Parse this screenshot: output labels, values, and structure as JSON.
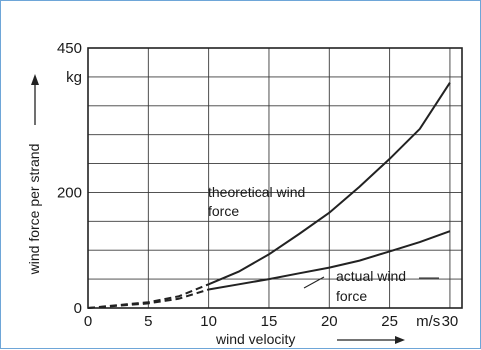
{
  "chart_data": {
    "type": "line",
    "xlabel": "wind velocity",
    "ylabel": "wind force per strand",
    "x_unit": "m/s",
    "y_unit": "kg",
    "xlim": [
      0,
      31
    ],
    "ylim": [
      0,
      450
    ],
    "x_ticks": [
      0,
      5,
      10,
      15,
      20,
      25,
      30
    ],
    "y_ticks": [
      0,
      200,
      450
    ],
    "grid": true,
    "series": [
      {
        "name": "theoretical wind force",
        "dashed_below_x": 10,
        "points": [
          {
            "x": 0,
            "y": 0
          },
          {
            "x": 5,
            "y": 10
          },
          {
            "x": 7.5,
            "y": 20
          },
          {
            "x": 10,
            "y": 41
          },
          {
            "x": 12.5,
            "y": 63
          },
          {
            "x": 15,
            "y": 93
          },
          {
            "x": 17.5,
            "y": 128
          },
          {
            "x": 20,
            "y": 165
          },
          {
            "x": 22.5,
            "y": 210
          },
          {
            "x": 25,
            "y": 258
          },
          {
            "x": 27.5,
            "y": 310
          },
          {
            "x": 30,
            "y": 390
          }
        ]
      },
      {
        "name": "actual wind force",
        "dashed_below_x": 10,
        "points": [
          {
            "x": 0,
            "y": 0
          },
          {
            "x": 5,
            "y": 8
          },
          {
            "x": 7.5,
            "y": 16
          },
          {
            "x": 10,
            "y": 32
          },
          {
            "x": 12.5,
            "y": 41
          },
          {
            "x": 15,
            "y": 50
          },
          {
            "x": 17.5,
            "y": 60
          },
          {
            "x": 20,
            "y": 70
          },
          {
            "x": 22.5,
            "y": 82
          },
          {
            "x": 25,
            "y": 98
          },
          {
            "x": 27.5,
            "y": 114
          },
          {
            "x": 30,
            "y": 133
          }
        ]
      }
    ],
    "annotations": [
      {
        "lines": [
          "theoretical wind",
          "force"
        ],
        "series": "theoretical wind force"
      },
      {
        "lines": [
          "actual wind",
          "force"
        ],
        "series": "actual wind force"
      }
    ]
  }
}
